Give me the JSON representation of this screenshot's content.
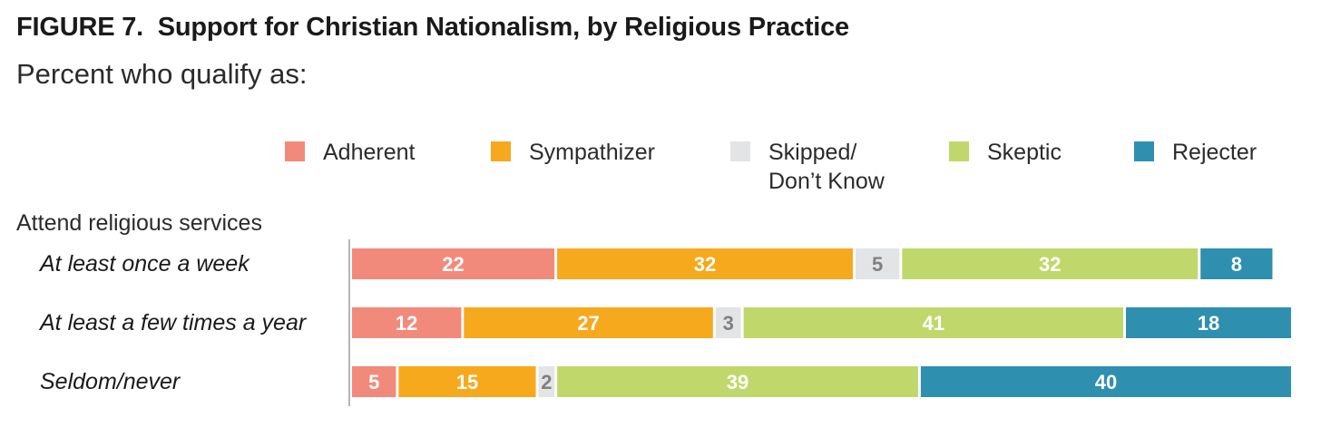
{
  "chart_data": {
    "type": "bar",
    "orientation": "horizontal",
    "stacked": true,
    "title": "FIGURE 7.  Support for Christian Nationalism, by Religious Practice",
    "subtitle": "Percent who qualify as:",
    "group_label": "Attend religious services",
    "categories": [
      "At least once a week",
      "At least a few times a year",
      "Seldom/never"
    ],
    "series": [
      {
        "name": "Adherent",
        "color": "#f28a7b",
        "label_color": "#ffffff",
        "values": [
          22,
          12,
          5
        ]
      },
      {
        "name": "Sympathizer",
        "color": "#f6a91d",
        "label_color": "#ffffff",
        "values": [
          32,
          27,
          15
        ]
      },
      {
        "name": "Skipped/ Don’t Know",
        "legend_lines": [
          "Skipped/",
          "Don’t Know"
        ],
        "color": "#e3e4e5",
        "label_color": "#808080",
        "values": [
          5,
          3,
          2
        ]
      },
      {
        "name": "Skeptic",
        "color": "#c0d86b",
        "label_color": "#ffffff",
        "values": [
          32,
          41,
          39
        ]
      },
      {
        "name": "Rejecter",
        "color": "#2f8fae",
        "label_color": "#ffffff",
        "values": [
          8,
          18,
          40
        ]
      }
    ],
    "xlim": [
      0,
      101
    ],
    "legend_position": "top"
  }
}
